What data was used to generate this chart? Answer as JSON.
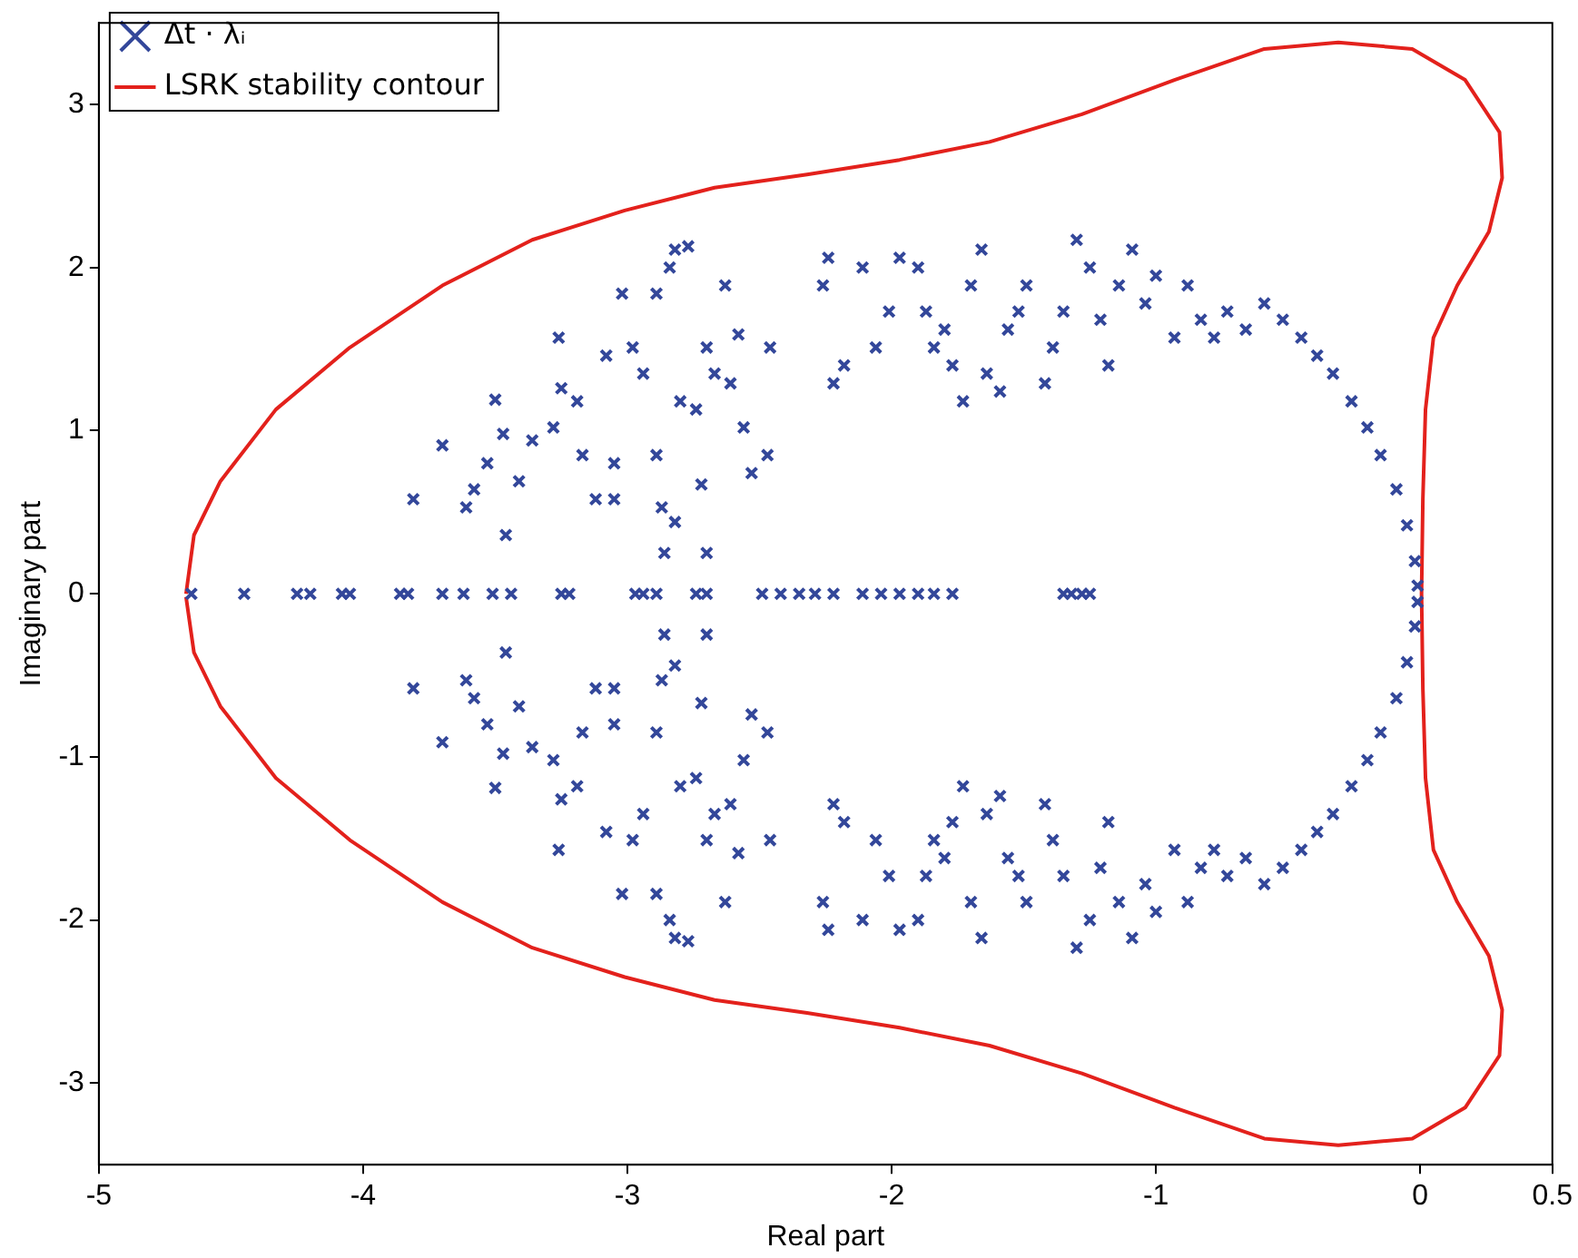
{
  "chart_data": {
    "type": "scatter",
    "xlabel": "Real part",
    "ylabel": "Imaginary part",
    "xlim": [
      -5,
      0.5
    ],
    "xticks": [
      -5,
      -4,
      -3,
      -2,
      -1,
      0,
      0.5
    ],
    "ylim": [
      -3.5,
      3.5
    ],
    "yticks": [
      -3,
      -2,
      -1,
      0,
      1,
      2,
      3
    ],
    "grid": false,
    "legend": "top left",
    "marker": "cross",
    "series": [
      {
        "name": "Δt · λᵢ",
        "color": "#33479a",
        "x": [
          -4.65,
          -4.45,
          -4.25,
          -4.2,
          -4.08,
          -4.05,
          -3.86,
          -3.83,
          -3.7,
          -3.62,
          -3.51,
          -3.44,
          -3.25,
          -3.22,
          -2.97,
          -2.94,
          -2.89,
          -2.74,
          -2.7,
          -2.49,
          -2.42,
          -2.35,
          -2.29,
          -2.22,
          -2.11,
          -2.04,
          -1.97,
          -1.9,
          -1.84,
          -1.77,
          -1.35,
          -1.32,
          -1.28,
          -1.25,
          -3.81,
          -3.7,
          -3.61,
          -3.53,
          -3.58,
          -3.41,
          -3.5,
          -3.47,
          -3.46,
          -3.36,
          -3.28,
          -3.26,
          -3.25,
          -3.19,
          -3.17,
          -3.12,
          -3.05,
          -3.05,
          -3.02,
          -3.08,
          -2.98,
          -2.94,
          -2.89,
          -2.89,
          -2.87,
          -2.84,
          -2.82,
          -2.77,
          -2.8,
          -2.74,
          -2.7,
          -2.67,
          -2.63,
          -2.61,
          -2.58,
          -2.56,
          -2.53,
          -2.47,
          -2.46,
          -2.7,
          -2.82,
          -2.86,
          -2.72,
          -2.26,
          -2.24,
          -2.22,
          -2.18,
          -2.11,
          -2.06,
          -2.01,
          -1.97,
          -1.9,
          -1.87,
          -1.84,
          -1.8,
          -1.77,
          -1.73,
          -1.7,
          -1.66,
          -1.64,
          -1.59,
          -1.56,
          -1.52,
          -1.49,
          -1.42,
          -1.39,
          -1.35,
          -1.3,
          -1.25,
          -1.21,
          -1.18,
          -1.14,
          -1.09,
          -1.04,
          -1.0,
          -0.93,
          -0.88,
          -0.83,
          -0.78,
          -0.73,
          -0.66,
          -0.59,
          -0.52,
          -0.45,
          -0.39,
          -0.33,
          -0.26,
          -0.2,
          -0.15,
          -0.09,
          -0.05,
          -0.02,
          -0.01,
          -3.81,
          -3.7,
          -3.61,
          -3.53,
          -3.58,
          -3.41,
          -3.5,
          -3.47,
          -3.46,
          -3.36,
          -3.28,
          -3.26,
          -3.25,
          -3.19,
          -3.17,
          -3.12,
          -3.05,
          -3.05,
          -3.02,
          -3.08,
          -2.98,
          -2.94,
          -2.89,
          -2.89,
          -2.87,
          -2.84,
          -2.82,
          -2.77,
          -2.8,
          -2.74,
          -2.7,
          -2.67,
          -2.63,
          -2.61,
          -2.58,
          -2.56,
          -2.53,
          -2.47,
          -2.46,
          -2.7,
          -2.82,
          -2.86,
          -2.72,
          -2.26,
          -2.24,
          -2.22,
          -2.18,
          -2.11,
          -2.06,
          -2.01,
          -1.97,
          -1.9,
          -1.87,
          -1.84,
          -1.8,
          -1.77,
          -1.73,
          -1.7,
          -1.66,
          -1.64,
          -1.59,
          -1.56,
          -1.52,
          -1.49,
          -1.42,
          -1.39,
          -1.35,
          -1.3,
          -1.25,
          -1.21,
          -1.18,
          -1.14,
          -1.09,
          -1.04,
          -1.0,
          -0.93,
          -0.88,
          -0.83,
          -0.78,
          -0.73,
          -0.66,
          -0.59,
          -0.52,
          -0.45,
          -0.39,
          -0.33,
          -0.26,
          -0.2,
          -0.15,
          -0.09,
          -0.05,
          -0.02,
          -0.01
        ],
        "values": [
          0,
          0,
          0,
          0,
          0,
          0,
          0,
          0,
          0,
          0,
          0,
          0,
          0,
          0,
          0,
          0,
          0,
          0,
          0,
          0,
          0,
          0,
          0,
          0,
          0,
          0,
          0,
          0,
          0,
          0,
          0,
          0,
          0,
          0,
          0.58,
          0.91,
          0.53,
          0.8,
          0.64,
          0.69,
          1.19,
          0.98,
          0.36,
          0.94,
          1.02,
          1.57,
          1.26,
          1.18,
          0.85,
          0.58,
          0.58,
          0.8,
          1.84,
          1.46,
          1.51,
          1.35,
          1.84,
          0.85,
          0.53,
          2.0,
          2.11,
          2.13,
          1.18,
          1.13,
          1.51,
          1.35,
          1.89,
          1.29,
          1.59,
          1.02,
          0.74,
          0.85,
          1.51,
          0.25,
          0.44,
          0.25,
          0.67,
          1.89,
          2.06,
          1.29,
          1.4,
          2.0,
          1.51,
          1.73,
          2.06,
          2.0,
          1.73,
          1.51,
          1.62,
          1.4,
          1.18,
          1.89,
          2.11,
          1.35,
          1.24,
          1.62,
          1.73,
          1.89,
          1.29,
          1.51,
          1.73,
          2.17,
          2.0,
          1.68,
          1.4,
          1.89,
          2.11,
          1.78,
          1.95,
          1.57,
          1.89,
          1.68,
          1.57,
          1.73,
          1.62,
          1.78,
          1.68,
          1.57,
          1.46,
          1.35,
          1.18,
          1.02,
          0.85,
          0.64,
          0.42,
          0.2,
          0.05,
          -0.58,
          -0.91,
          -0.53,
          -0.8,
          -0.64,
          -0.69,
          -1.19,
          -0.98,
          -0.36,
          -0.94,
          -1.02,
          -1.57,
          -1.26,
          -1.18,
          -0.85,
          -0.58,
          -0.58,
          -0.8,
          -1.84,
          -1.46,
          -1.51,
          -1.35,
          -1.84,
          -0.85,
          -0.53,
          -2.0,
          -2.11,
          -2.13,
          -1.18,
          -1.13,
          -1.51,
          -1.35,
          -1.89,
          -1.29,
          -1.59,
          -1.02,
          -0.74,
          -0.85,
          -1.51,
          -0.25,
          -0.44,
          -0.25,
          -0.67,
          -1.89,
          -2.06,
          -1.29,
          -1.4,
          -2.0,
          -1.51,
          -1.73,
          -2.06,
          -2.0,
          -1.73,
          -1.51,
          -1.62,
          -1.4,
          -1.18,
          -1.89,
          -2.11,
          -1.35,
          -1.24,
          -1.62,
          -1.73,
          -1.89,
          -1.29,
          -1.51,
          -1.73,
          -2.17,
          -2.0,
          -1.68,
          -1.4,
          -1.89,
          -2.11,
          -1.78,
          -1.95,
          -1.57,
          -1.89,
          -1.68,
          -1.57,
          -1.73,
          -1.62,
          -1.78,
          -1.68,
          -1.57,
          -1.46,
          -1.35,
          -1.18,
          -1.02,
          -0.85,
          -0.64,
          -0.42,
          -0.2,
          -0.05
        ]
      },
      {
        "name": "LSRK stability contour",
        "type": "line",
        "color": "#e3211c",
        "marker": "none",
        "line_style": "solid",
        "x": [
          -4.67,
          -4.64,
          -4.54,
          -4.33,
          -4.05,
          -3.7,
          -3.36,
          -3.01,
          -2.67,
          -2.32,
          -1.97,
          -1.63,
          -1.28,
          -0.93,
          -0.59,
          -0.31,
          -0.03,
          0.17,
          0.3,
          0.31,
          0.26,
          0.14,
          0.05,
          0.02,
          0.01,
          0.005,
          0.01,
          0.02,
          0.05,
          0.14,
          0.26,
          0.31,
          0.3,
          0.17,
          -0.03,
          -0.31,
          -0.59,
          -0.93,
          -1.28,
          -1.63,
          -1.97,
          -2.32,
          -2.67,
          -3.01,
          -3.36,
          -3.7,
          -4.05,
          -4.33,
          -4.54,
          -4.64,
          -4.67
        ],
        "values": [
          0,
          0.36,
          0.69,
          1.13,
          1.51,
          1.89,
          2.17,
          2.35,
          2.49,
          2.57,
          2.66,
          2.77,
          2.94,
          3.15,
          3.34,
          3.38,
          3.34,
          3.15,
          2.83,
          2.55,
          2.22,
          1.89,
          1.57,
          1.13,
          0.58,
          0,
          -0.58,
          -1.13,
          -1.57,
          -1.89,
          -2.22,
          -2.55,
          -2.83,
          -3.15,
          -3.34,
          -3.38,
          -3.34,
          -3.15,
          -2.94,
          -2.77,
          -2.66,
          -2.57,
          -2.49,
          -2.35,
          -2.17,
          -1.89,
          -1.51,
          -1.13,
          -0.69,
          -0.36,
          -0.02
        ]
      }
    ]
  }
}
